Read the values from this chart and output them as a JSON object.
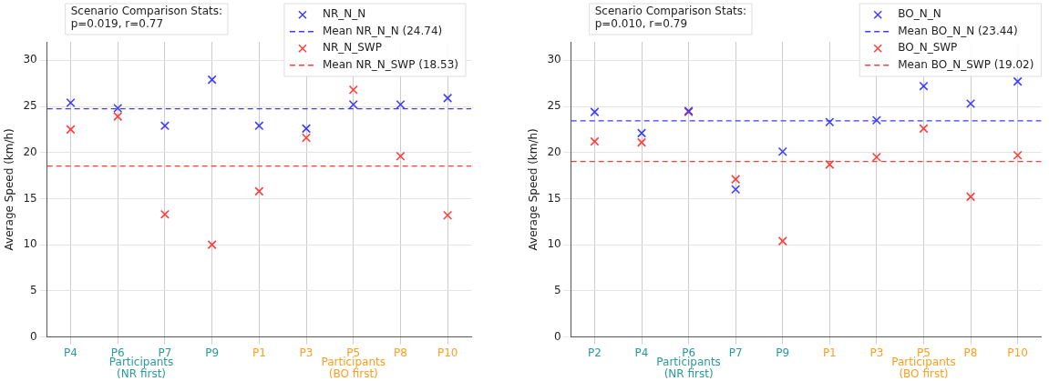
{
  "chart_data": [
    {
      "type": "scatter",
      "ylabel": "Average Speed (km/h)",
      "categories": [
        "P4",
        "P6",
        "P7",
        "P9",
        "P1",
        "P3",
        "P5",
        "P8",
        "P10"
      ],
      "marker": "cross",
      "grid": true,
      "legend": "top right",
      "ylim": [
        0,
        32
      ],
      "yticks": [
        0,
        5,
        10,
        15,
        20,
        25,
        30
      ],
      "series": [
        {
          "name": "NR_N_N",
          "color": "#3d3dff",
          "values": [
            25.4,
            24.8,
            22.9,
            27.9,
            22.9,
            22.6,
            25.2,
            25.2,
            25.9
          ]
        },
        {
          "name": "NR_N_SWP",
          "color": "#ff3d3d",
          "values": [
            22.5,
            23.9,
            13.3,
            10.0,
            15.8,
            21.6,
            26.8,
            19.6,
            13.2
          ]
        }
      ],
      "ref_lines": [
        {
          "axis": "y",
          "value": 24.74,
          "label": "Mean NR_N_N (24.74)",
          "color": "#3d3dff",
          "line_style": "dashed"
        },
        {
          "axis": "y",
          "value": 18.53,
          "label": "Mean NR_N_SWP (18.53)",
          "color": "#ff3d3d",
          "line_style": "dashed"
        }
      ],
      "annotations": [
        "Scenario Comparison Stats:\np=0.019, r=0.77",
        "Participants\n(NR first)",
        "Participants\n(BO first)"
      ]
    },
    {
      "type": "scatter",
      "ylabel": "Average Speed (km/h)",
      "categories": [
        "P2",
        "P4",
        "P6",
        "P7",
        "P9",
        "P1",
        "P3",
        "P5",
        "P8",
        "P10"
      ],
      "marker": "cross",
      "grid": true,
      "legend": "top right",
      "ylim": [
        0,
        32
      ],
      "yticks": [
        0,
        5,
        10,
        15,
        20,
        25,
        30
      ],
      "series": [
        {
          "name": "BO_N_N",
          "color": "#3d3dff",
          "values": [
            24.4,
            22.1,
            24.5,
            16.0,
            20.1,
            23.3,
            23.5,
            27.2,
            25.3,
            27.7
          ]
        },
        {
          "name": "BO_N_SWP",
          "color": "#ff3d3d",
          "values": [
            21.2,
            21.1,
            24.4,
            17.1,
            10.4,
            18.7,
            19.5,
            22.6,
            15.2,
            19.7
          ]
        }
      ],
      "ref_lines": [
        {
          "axis": "y",
          "value": 23.44,
          "label": "Mean BO_N_N (23.44)",
          "color": "#3d3dff",
          "line_style": "dashed"
        },
        {
          "axis": "y",
          "value": 19.02,
          "label": "Mean BO_N_SWP (19.02)",
          "color": "#ff3d3d",
          "line_style": "dashed"
        }
      ],
      "annotations": [
        "Scenario Comparison Stats:\np=0.010, r=0.79",
        "Participants\n(NR first)",
        "Participants\n(BO first)"
      ]
    }
  ]
}
